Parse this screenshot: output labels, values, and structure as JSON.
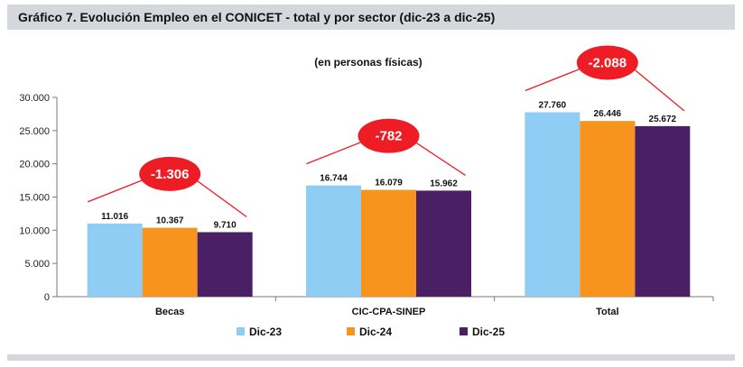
{
  "header": {
    "title": "Gráfico 7. Evolución Empleo en el CONICET - total y por sector (dic-23 a dic-25)"
  },
  "chart_data": {
    "type": "bar",
    "subtitle": "(en personas físicas)",
    "categories": [
      "Becas",
      "CIC-CPA-SINEP",
      "Total"
    ],
    "series": [
      {
        "name": "Dic-23",
        "color": "#8fcdf5",
        "values": [
          11016,
          16744,
          27760
        ],
        "labels": [
          "11.016",
          "16.744",
          "27.760"
        ]
      },
      {
        "name": "Dic-24",
        "color": "#f7941d",
        "values": [
          10367,
          16079,
          26446
        ],
        "labels": [
          "10.367",
          "16.079",
          "26.446"
        ]
      },
      {
        "name": "Dic-25",
        "color": "#4b1f63",
        "values": [
          9710,
          15962,
          25672
        ],
        "labels": [
          "9.710",
          "15.962",
          "25.672"
        ]
      }
    ],
    "ylim": [
      0,
      30000
    ],
    "yticks": [
      0,
      5000,
      10000,
      15000,
      20000,
      25000,
      30000
    ],
    "ytick_labels": [
      "0",
      "5.000",
      "10.000",
      "15.000",
      "20.000",
      "25.000",
      "30.000"
    ],
    "grid": false,
    "legend": "bottom",
    "annotations": [
      "-1.306",
      "-782",
      "-2.088"
    ],
    "annotation_color": "#ee1c24"
  }
}
